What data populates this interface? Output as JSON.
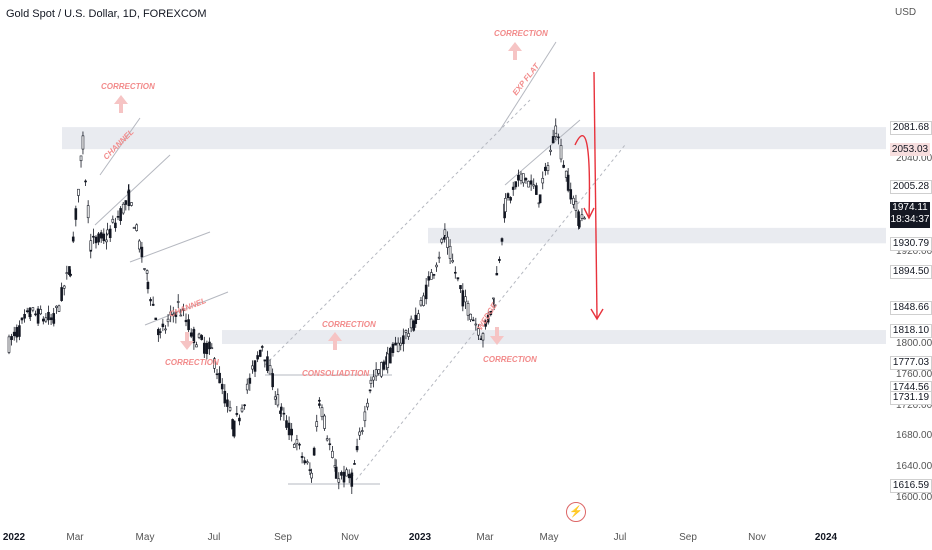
{
  "header": {
    "title": "Gold Spot / U.S. Dollar, 1D, FOREXCOM",
    "currency": "USD"
  },
  "price_axis": {
    "ticks": [
      "2040.00",
      "1920.00",
      "1840.00",
      "1800.00",
      "1760.00",
      "1720.00",
      "1680.00",
      "1640.00",
      "1600.00"
    ],
    "tags": [
      {
        "label": "2081.68",
        "style": "outline",
        "value": 2081.68
      },
      {
        "label": "2053.03",
        "style": "red",
        "value": 2053.03
      },
      {
        "label": "2005.28",
        "style": "outline",
        "value": 2005.28
      },
      {
        "label": "1930.79",
        "style": "outline",
        "value": 1930.79
      },
      {
        "label": "1894.50",
        "style": "outline",
        "value": 1894.5
      },
      {
        "label": "1848.66",
        "style": "outline",
        "value": 1848.66
      },
      {
        "label": "1818.10",
        "style": "outline",
        "value": 1818.1
      },
      {
        "label": "1777.03",
        "style": "outline",
        "value": 1777.03
      },
      {
        "label": "1744.56",
        "style": "outline",
        "value": 1744.56
      },
      {
        "label": "1731.19",
        "style": "outline",
        "value": 1731.19
      },
      {
        "label": "1616.59",
        "style": "outline",
        "value": 1616.59
      }
    ],
    "current": {
      "price": "1974.11",
      "countdown": "18:34:37",
      "value": 1974.11
    }
  },
  "time_axis": [
    {
      "label": "2022",
      "bold": true
    },
    {
      "label": "Mar",
      "bold": false
    },
    {
      "label": "May",
      "bold": false
    },
    {
      "label": "Jul",
      "bold": false
    },
    {
      "label": "Sep",
      "bold": false
    },
    {
      "label": "Nov",
      "bold": false
    },
    {
      "label": "2023",
      "bold": true
    },
    {
      "label": "Mar",
      "bold": false
    },
    {
      "label": "May",
      "bold": false
    },
    {
      "label": "Jul",
      "bold": false
    },
    {
      "label": "Sep",
      "bold": false
    },
    {
      "label": "Nov",
      "bold": false
    },
    {
      "label": "2024",
      "bold": true
    }
  ],
  "annotations": {
    "correction_1": "CORRECTION",
    "channel_1": "CHANNEL",
    "channel_2": "CHANNEL",
    "correction_2": "CORRECTION",
    "correction_3": "CORRECTION",
    "consolidation": "CONSOLIADTION",
    "correction_top": "CORRECTION",
    "exp_flat": "EXP FLAT",
    "wedge": "WEDGE",
    "correction_4": "CORRECTION"
  },
  "colors": {
    "candles": "#131722",
    "zone": "#e9ebf0",
    "annotation": "#f28b8b",
    "arrow": "#e8323c"
  },
  "chart_data": {
    "type": "candlestick",
    "symbol": "Gold Spot / U.S. Dollar",
    "interval": "1D",
    "exchange": "FOREXCOM",
    "y_axis": {
      "unit": "USD"
    },
    "series": [
      {
        "name": "price",
        "points": [
          [
            "2022-01-01",
            1800
          ],
          [
            "2022-01-20",
            1840
          ],
          [
            "2022-02-10",
            1830
          ],
          [
            "2022-02-25",
            1900
          ],
          [
            "2022-03-08",
            2060
          ],
          [
            "2022-03-15",
            1930
          ],
          [
            "2022-03-30",
            1940
          ],
          [
            "2022-04-18",
            1990
          ],
          [
            "2022-05-05",
            1880
          ],
          [
            "2022-05-16",
            1810
          ],
          [
            "2022-06-01",
            1850
          ],
          [
            "2022-06-15",
            1810
          ],
          [
            "2022-07-01",
            1790
          ],
          [
            "2022-07-21",
            1690
          ],
          [
            "2022-08-15",
            1800
          ],
          [
            "2022-09-01",
            1710
          ],
          [
            "2022-09-28",
            1630
          ],
          [
            "2022-10-05",
            1730
          ],
          [
            "2022-10-20",
            1630
          ],
          [
            "2022-11-03",
            1625
          ],
          [
            "2022-11-20",
            1750
          ],
          [
            "2022-12-05",
            1780
          ],
          [
            "2022-12-30",
            1830
          ],
          [
            "2023-01-25",
            1940
          ],
          [
            "2023-02-10",
            1860
          ],
          [
            "2023-02-28",
            1810
          ],
          [
            "2023-03-10",
            1860
          ],
          [
            "2023-03-20",
            1980
          ],
          [
            "2023-04-05",
            2020
          ],
          [
            "2023-04-20",
            1990
          ],
          [
            "2023-05-04",
            2080
          ],
          [
            "2023-05-15",
            2010
          ],
          [
            "2023-05-25",
            1960
          ],
          [
            "2023-05-31",
            1974
          ]
        ]
      }
    ],
    "horizontal_zones": [
      {
        "from": 2053.03,
        "to": 2081.68
      },
      {
        "from": 1930.79,
        "to": 1950.84
      },
      {
        "from": 1800,
        "to": 1818.1
      }
    ]
  }
}
